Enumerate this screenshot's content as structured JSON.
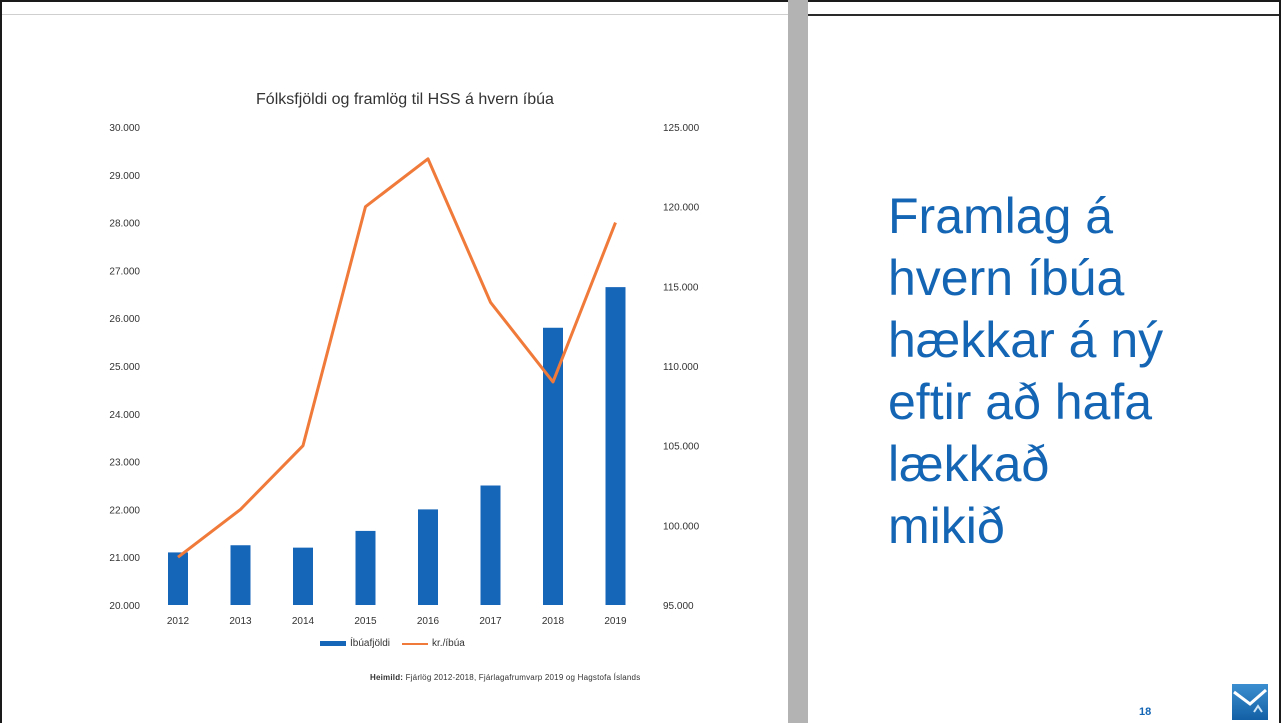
{
  "chart_data": {
    "type": "bar+line",
    "title": "Fólksfjöldi og framlög til HSS á hvern íbúa",
    "categories": [
      "2012",
      "2013",
      "2014",
      "2015",
      "2016",
      "2017",
      "2018",
      "2019"
    ],
    "y_left": {
      "min": 20000,
      "max": 30000,
      "step": 1000,
      "tick_labels": [
        "20.000",
        "21.000",
        "22.000",
        "23.000",
        "24.000",
        "25.000",
        "26.000",
        "27.000",
        "28.000",
        "29.000",
        "30.000"
      ]
    },
    "y_right": {
      "min": 95000,
      "max": 125000,
      "step": 5000,
      "tick_labels": [
        "95.000",
        "100.000",
        "105.000",
        "110.000",
        "115.000",
        "120.000",
        "125.000"
      ]
    },
    "series": [
      {
        "name": "Íbúafjöldi",
        "type": "bar",
        "axis": "left",
        "color": "#1565b8",
        "values": [
          21100,
          21250,
          21200,
          21550,
          22000,
          22500,
          25800,
          26650
        ]
      },
      {
        "name": "kr./íbúa",
        "type": "line",
        "axis": "right",
        "color": "#f07a3a",
        "values": [
          98000,
          101000,
          105000,
          120000,
          123000,
          114000,
          109000,
          119000
        ]
      }
    ],
    "legend_position": "bottom",
    "grid": false
  },
  "source_label": "Heimild:",
  "source_text": "Fjárlög 2012-2018, Fjárlagafrumvarp 2019 og Hagstofa Íslands",
  "headline_lines": [
    "Framlag á",
    "hvern íbúa",
    "hækkar á ný",
    "eftir að hafa",
    "lækkað",
    "mikið"
  ],
  "page_number": "18",
  "colors": {
    "accent": "#1466b5",
    "bar": "#1565b8",
    "line": "#f07a3a"
  }
}
